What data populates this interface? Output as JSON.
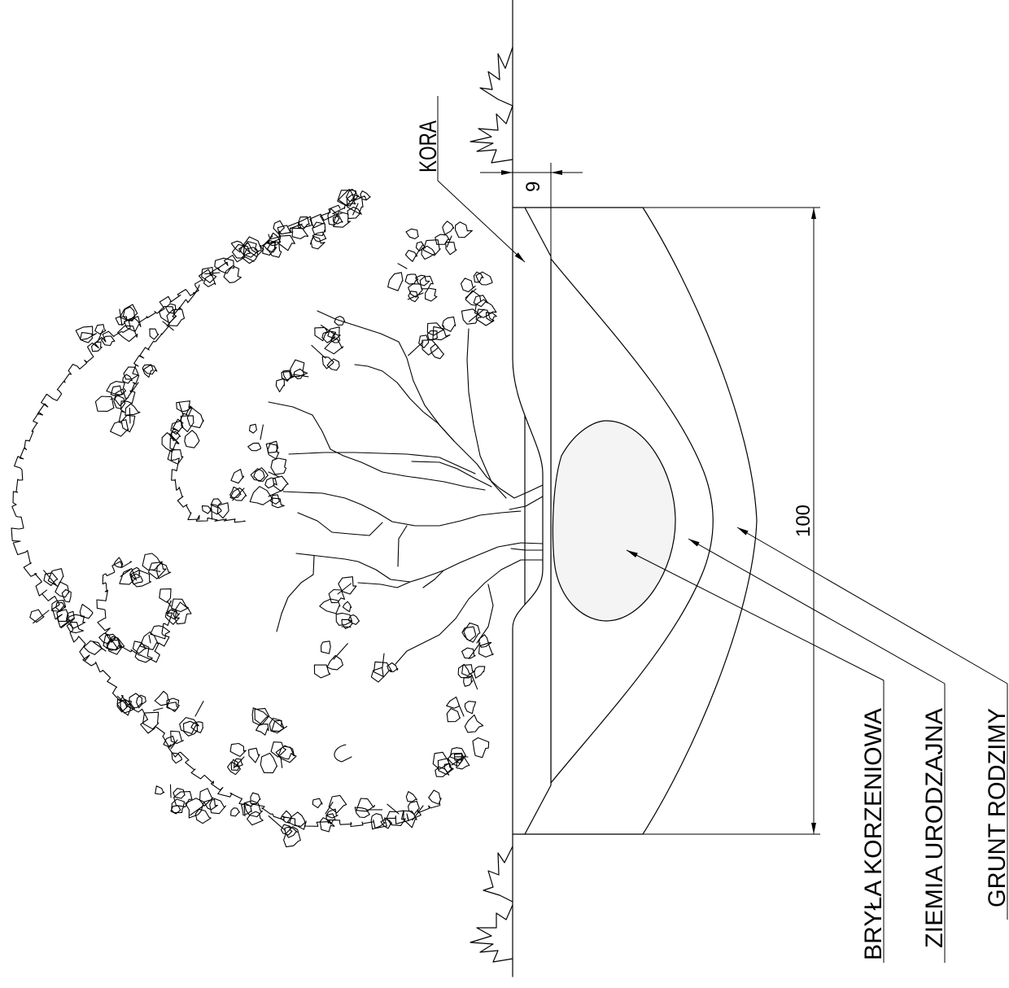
{
  "labels": {
    "mulch": "KORA",
    "root_ball": "BRYŁA KORZENIOWA",
    "fertile_soil": "ZIEMIA URODZAJNA",
    "native_soil": "GRUNT RODZIMY"
  },
  "dimensions": {
    "mulch_thickness": "9",
    "pit_width": "100"
  }
}
